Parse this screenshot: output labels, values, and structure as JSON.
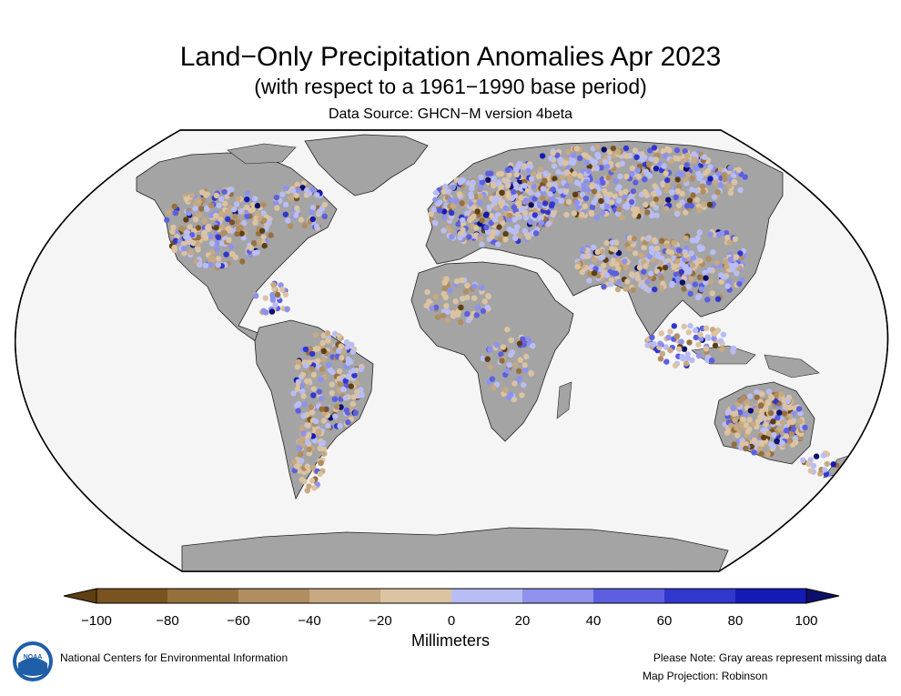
{
  "title": "Land−Only Precipitation Anomalies Apr 2023",
  "subtitle": "(with respect to a 1961−1990 base period)",
  "source": "Data Source: GHCN−M version 4beta",
  "colorbar": {
    "units": "Millimeters",
    "ticks": [
      "−100",
      "−80",
      "−60",
      "−40",
      "−20",
      "0",
      "20",
      "40",
      "60",
      "80",
      "100"
    ],
    "colors": [
      "#7a5320",
      "#95703d",
      "#b08e61",
      "#c7a982",
      "#dcc3a1",
      "#b9bdf5",
      "#8e92ec",
      "#5c5fe0",
      "#3137cc",
      "#141bb4"
    ],
    "under_color": "#5f3f12",
    "over_color": "#0c0f6a"
  },
  "map": {
    "ocean_color": "#f5f5f5",
    "land_color": "#a4a4a4",
    "border_color": "#000000",
    "missing_data_color": "#a4a4a4"
  },
  "footer": {
    "logo_text": "NOAA",
    "org": "National Centers for Environmental Information",
    "note": "Please Note: Gray areas represent missing data",
    "projection": "Map Projection: Robinson"
  }
}
